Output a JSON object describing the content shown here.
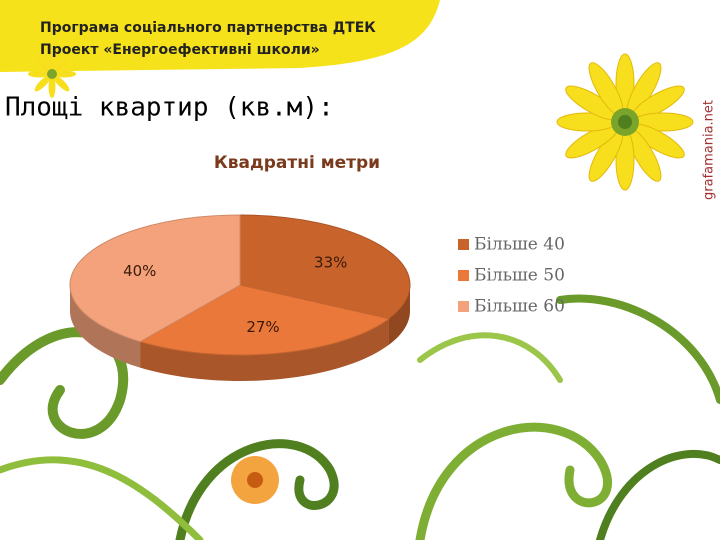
{
  "header": {
    "line1": "Програма соціального партнерства ДТЕК",
    "line2": "Проект «Енергоефективні школи»"
  },
  "title": "Площі квартир (кв.м):",
  "watermark": "grafamania.net",
  "chart_data": {
    "type": "pie",
    "title": "Квадратні метри",
    "categories": [
      "Більше 40",
      "Більше 50",
      "Більше 60"
    ],
    "values": [
      33,
      27,
      40
    ],
    "value_labels": [
      "33%",
      "27%",
      "40%"
    ],
    "colors": [
      "#c9632c",
      "#ea783a",
      "#f4a27c"
    ],
    "legend": "right"
  }
}
